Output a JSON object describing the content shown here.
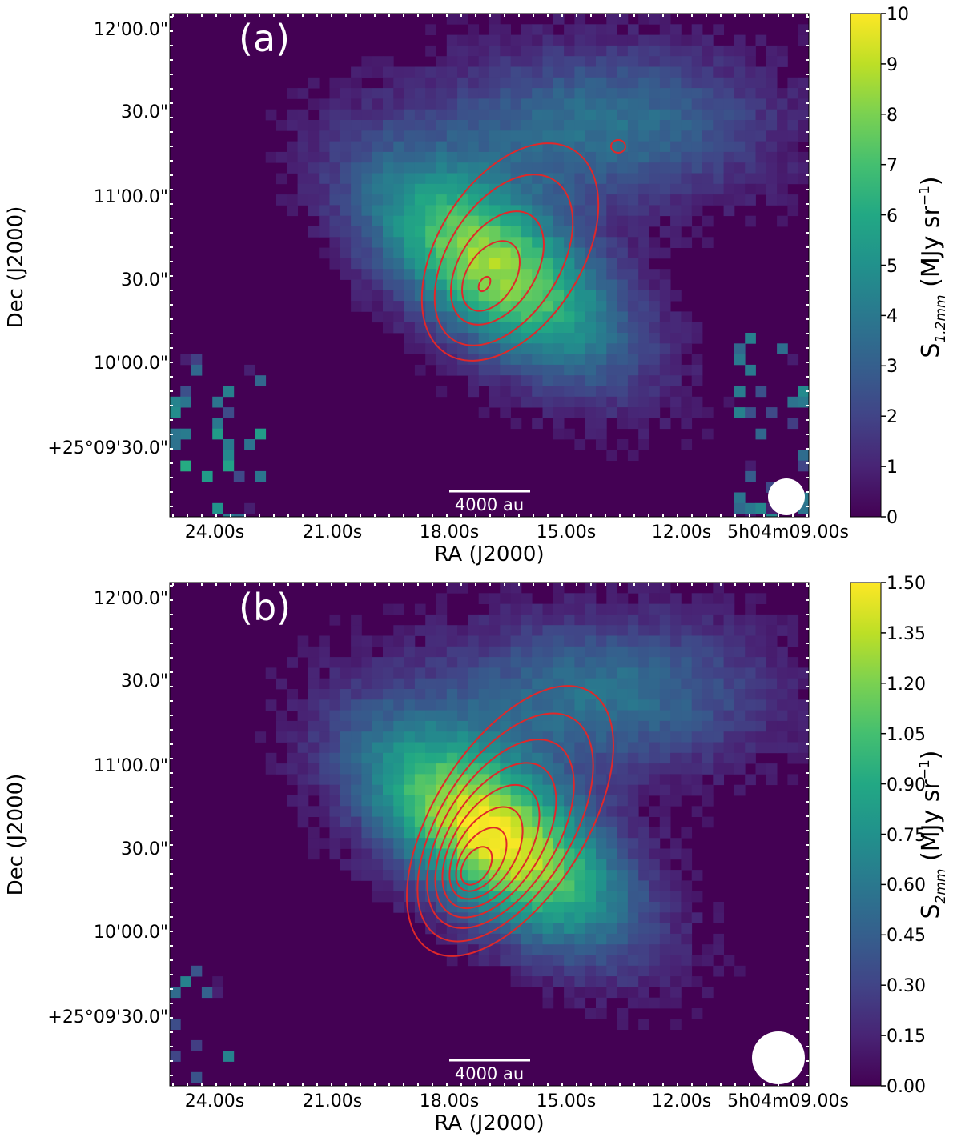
{
  "figure": {
    "panels": [
      {
        "id": "a",
        "panel_label": "(a)",
        "scale_bar_label": "4000 au",
        "xlabel": "RA (J2000)",
        "ylabel": "Dec (J2000)",
        "xticklabels": [
          "24.00s",
          "21.00s",
          "18.00s",
          "15.00s",
          "12.00s",
          "5h04m09.00s"
        ],
        "yticklabels": [
          "12'00.0\"",
          "30.0\"",
          "11'00.0\"",
          "30.0\"",
          "10'00.0\"",
          "+25°09'30.0\""
        ],
        "colorbar_label_main": "S",
        "colorbar_label_sub": "1.2mm",
        "colorbar_label_unit": " (MJy sr",
        "colorbar_label_exp": "−1",
        "colorbar_label_close": ")",
        "colorbar_ticklabels": [
          "10",
          "9",
          "8",
          "7",
          "6",
          "5",
          "4",
          "3",
          "2",
          "1",
          "0"
        ]
      },
      {
        "id": "b",
        "panel_label": "(b)",
        "scale_bar_label": "4000 au",
        "xlabel": "RA (J2000)",
        "ylabel": "Dec (J2000)",
        "xticklabels": [
          "24.00s",
          "21.00s",
          "18.00s",
          "15.00s",
          "12.00s",
          "5h04m09.00s"
        ],
        "yticklabels": [
          "12'00.0\"",
          "30.0\"",
          "11'00.0\"",
          "30.0\"",
          "10'00.0\"",
          "+25°09'30.0\""
        ],
        "colorbar_label_main": "S",
        "colorbar_label_sub": "2mm",
        "colorbar_label_unit": " (MJy sr",
        "colorbar_label_exp": "−1",
        "colorbar_label_close": ")",
        "colorbar_ticklabels": [
          "1.50",
          "1.35",
          "1.20",
          "1.05",
          "0.90",
          "0.75",
          "0.60",
          "0.45",
          "0.30",
          "0.15",
          "0.00"
        ]
      }
    ]
  },
  "chart_data": [
    {
      "type": "heatmap",
      "panel": "(a)",
      "colormap": "viridis",
      "contour_color": "#e0282a",
      "background_color": "#440154",
      "xlabel": "RA (J2000)",
      "ylabel": "Dec (J2000)",
      "x_ticks": [
        "24.00s",
        "21.00s",
        "18.00s",
        "15.00s",
        "12.00s",
        "5h04m09.00s"
      ],
      "y_ticks": [
        "12'00.0\"",
        "30.0\"",
        "11'00.0\"",
        "30.0\"",
        "10'00.0\"",
        "+25°09'30.0\""
      ],
      "colorbar_range": [
        0,
        10
      ],
      "colorbar_unit": "MJy sr^-1",
      "peak_value_approx": 8.5,
      "contour_levels_count": 5,
      "beam": "filled white circle, bottom-right",
      "scale_bar": "4000 au"
    },
    {
      "type": "heatmap",
      "panel": "(b)",
      "colormap": "viridis",
      "contour_color": "#e0282a",
      "background_color": "#440154",
      "xlabel": "RA (J2000)",
      "ylabel": "Dec (J2000)",
      "x_ticks": [
        "24.00s",
        "21.00s",
        "18.00s",
        "15.00s",
        "12.00s",
        "5h04m09.00s"
      ],
      "y_ticks": [
        "12'00.0\"",
        "30.0\"",
        "11'00.0\"",
        "30.0\"",
        "10'00.0\"",
        "+25°09'30.0\""
      ],
      "colorbar_range": [
        0.0,
        1.5
      ],
      "colorbar_unit": "MJy sr^-1",
      "peak_value_approx": 1.5,
      "contour_levels_count": 8,
      "beam": "filled white circle, bottom-right",
      "scale_bar": "4000 au"
    }
  ]
}
